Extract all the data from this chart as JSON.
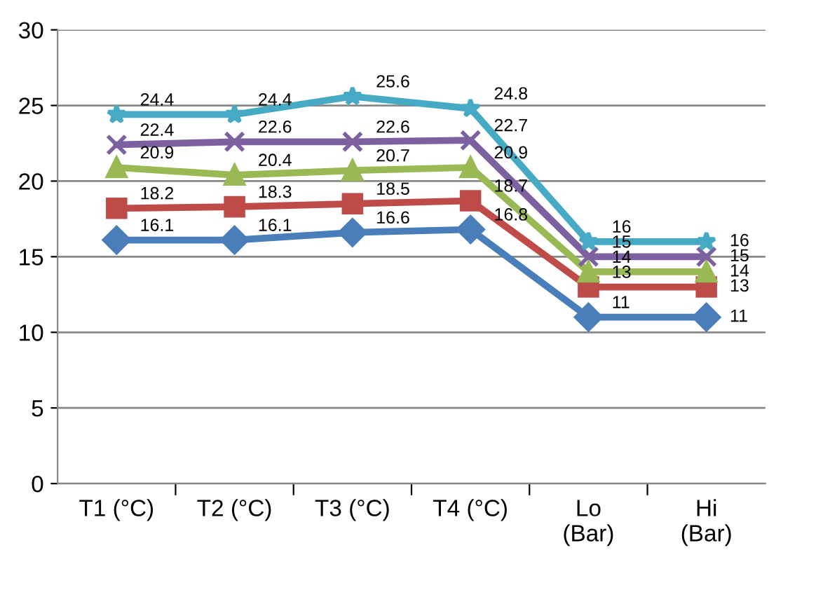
{
  "chart_data": {
    "type": "line",
    "categories": [
      "T1 (°C)",
      "T2 (°C)",
      "T3 (°C)",
      "T4 (°C)",
      "Lo\n(Bar)",
      "Hi\n(Bar)"
    ],
    "series": [
      {
        "color": "#4a7ebb",
        "marker": "diamond",
        "values": [
          16.1,
          16.1,
          16.6,
          16.8,
          11,
          11
        ]
      },
      {
        "color": "#be4b48",
        "marker": "square",
        "values": [
          18.2,
          18.3,
          18.5,
          18.7,
          13,
          13
        ]
      },
      {
        "color": "#98b954",
        "marker": "triangle",
        "values": [
          20.9,
          20.4,
          20.7,
          20.9,
          14,
          14
        ]
      },
      {
        "color": "#7d60a0",
        "marker": "cross",
        "values": [
          22.4,
          22.6,
          22.6,
          22.7,
          15,
          15
        ]
      },
      {
        "color": "#46aac5",
        "marker": "star",
        "values": [
          24.4,
          24.4,
          25.6,
          24.8,
          16,
          16
        ]
      }
    ],
    "ylim": [
      0,
      30
    ],
    "yticks": [
      0,
      5,
      10,
      15,
      20,
      25,
      30
    ],
    "grid": "y",
    "data_labels": true
  }
}
